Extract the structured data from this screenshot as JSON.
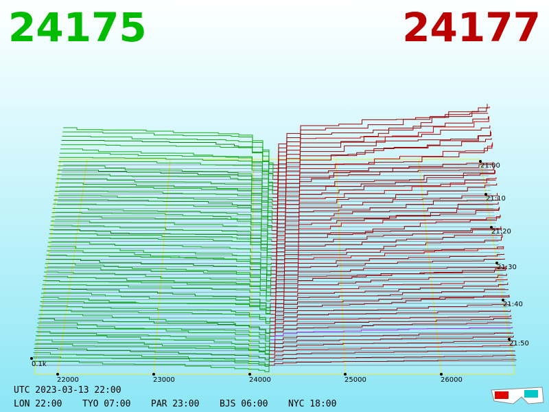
{
  "bid_price": "24175",
  "ask_price": "24177",
  "scale_label": "0.1k",
  "price_ticks": [
    "22000",
    "23000",
    "24000",
    "25000",
    "26000"
  ],
  "time_ticks": [
    "21:00",
    "21:10",
    "21:20",
    "21:30",
    "21:40",
    "21:50"
  ],
  "timestamp": "UTC 2023-03-13 22:00",
  "clocks": [
    "LON 22:00",
    "TYO 07:00",
    "PAR 23:00",
    "BJS 06:00",
    "NYC 18:00"
  ]
}
